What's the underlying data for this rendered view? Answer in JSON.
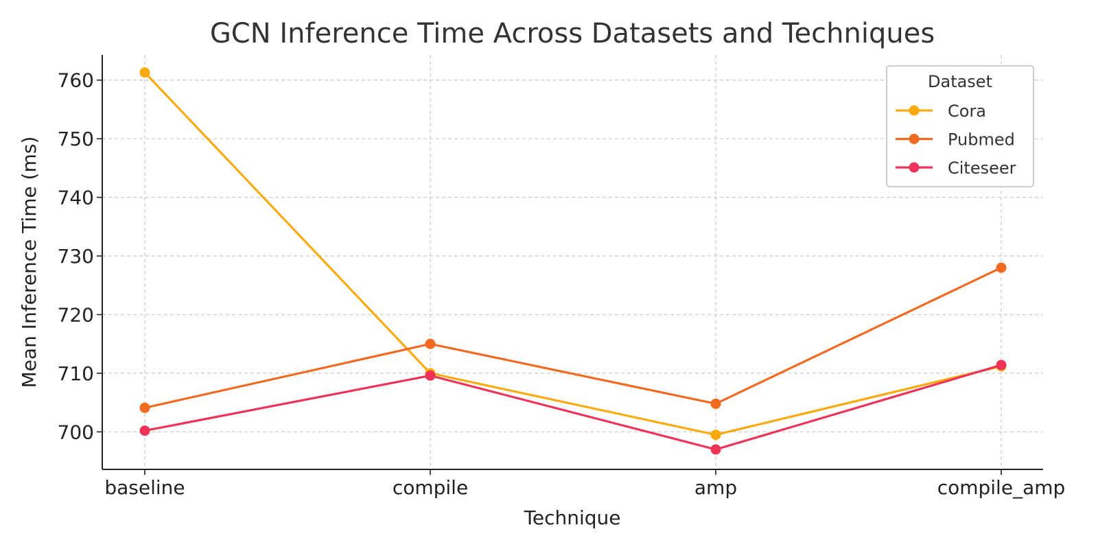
{
  "chart_data": {
    "type": "line",
    "title": "GCN Inference Time Across Datasets and Techniques",
    "xlabel": "Technique",
    "ylabel": "Mean Inference Time (ms)",
    "categories": [
      "baseline",
      "compile",
      "amp",
      "compile_amp"
    ],
    "ylim": [
      693.6,
      764.3
    ],
    "yticks": [
      700,
      710,
      720,
      730,
      740,
      750,
      760
    ],
    "grid": true,
    "legend": {
      "title": "Dataset",
      "placement": "top-right"
    },
    "series": [
      {
        "name": "Cora",
        "color": "#F9AA0E",
        "values": [
          761.3,
          710.0,
          699.5,
          711.2
        ]
      },
      {
        "name": "Pubmed",
        "color": "#F06A22",
        "values": [
          704.1,
          715.0,
          704.8,
          728.0
        ]
      },
      {
        "name": "Citeseer",
        "color": "#EE3358",
        "values": [
          700.2,
          709.6,
          697.0,
          711.4
        ]
      }
    ]
  }
}
